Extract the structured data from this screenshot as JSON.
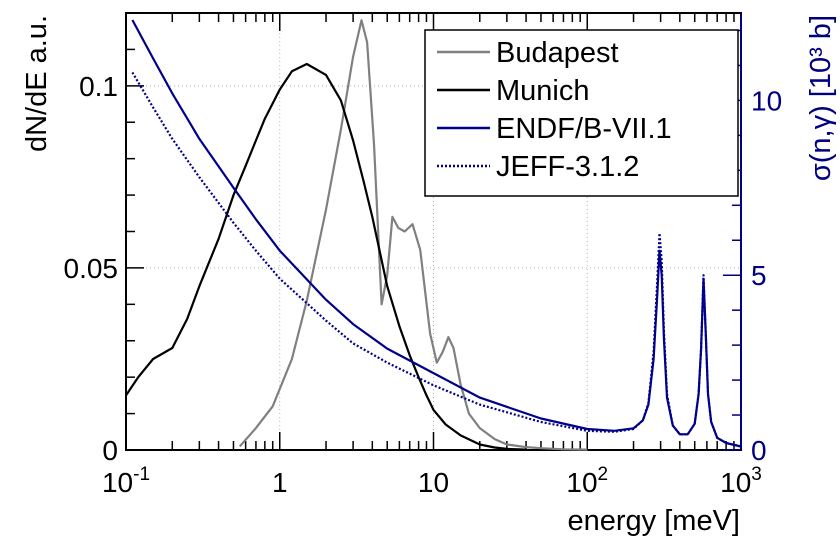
{
  "chart_data": {
    "type": "line",
    "xlabel": "energy [meV]",
    "ylabel_left": "dN/dE a.u.",
    "ylabel_right": "σ(n,γ) [10³ b]",
    "x_scale": "log",
    "xlim": [
      0.1,
      1000
    ],
    "ylim_left": [
      0,
      0.12
    ],
    "ylim_right": [
      0,
      12.5
    ],
    "x_tick_labels": [
      {
        "value": 0.1,
        "base": "10",
        "exp": "-1"
      },
      {
        "value": 1,
        "base": "1",
        "exp": ""
      },
      {
        "value": 10,
        "base": "10",
        "exp": ""
      },
      {
        "value": 100,
        "base": "10",
        "exp": "2"
      },
      {
        "value": 1000,
        "base": "10",
        "exp": "3"
      }
    ],
    "y_left_ticks": [
      {
        "value": 0,
        "label": "0"
      },
      {
        "value": 0.05,
        "label": "0.05"
      },
      {
        "value": 0.1,
        "label": "0.1"
      }
    ],
    "y_right_ticks": [
      {
        "value": 0,
        "label": "0"
      },
      {
        "value": 5,
        "label": "5"
      },
      {
        "value": 10,
        "label": "10"
      }
    ],
    "grid": true,
    "legend_position": "top-right",
    "series": [
      {
        "name": "Budapest",
        "axis": "left",
        "color": "#808080",
        "style": "solid",
        "x": [
          0.55,
          0.7,
          0.9,
          1.2,
          1.5,
          2.0,
          2.5,
          3.0,
          3.4,
          3.7,
          4.1,
          4.6,
          5.0,
          5.4,
          5.9,
          6.5,
          7.3,
          8.2,
          9.5,
          10.5,
          11.5,
          12.5,
          13.5,
          15.0,
          17.0,
          20.0,
          25.0,
          30.0,
          40.0,
          50.0,
          70.0,
          100.0
        ],
        "values": [
          0.001,
          0.006,
          0.012,
          0.025,
          0.041,
          0.066,
          0.088,
          0.108,
          0.118,
          0.112,
          0.084,
          0.04,
          0.048,
          0.064,
          0.061,
          0.06,
          0.062,
          0.055,
          0.032,
          0.024,
          0.027,
          0.031,
          0.028,
          0.018,
          0.01,
          0.006,
          0.003,
          0.0015,
          0.0008,
          0.0005,
          0.0002,
          0.0001
        ]
      },
      {
        "name": "Munich",
        "axis": "left",
        "color": "#000000",
        "style": "solid",
        "x": [
          0.1,
          0.12,
          0.15,
          0.2,
          0.25,
          0.3,
          0.4,
          0.5,
          0.6,
          0.7,
          0.8,
          1.0,
          1.2,
          1.5,
          2.0,
          2.5,
          3.0,
          3.5,
          4.0,
          5.0,
          6.0,
          7.0,
          8.0,
          9.0,
          10.0,
          12.0,
          15.0,
          20.0,
          25.0,
          30.0,
          40.0
        ],
        "values": [
          0.015,
          0.02,
          0.025,
          0.028,
          0.036,
          0.045,
          0.058,
          0.07,
          0.078,
          0.085,
          0.091,
          0.099,
          0.104,
          0.106,
          0.103,
          0.096,
          0.085,
          0.074,
          0.064,
          0.045,
          0.034,
          0.026,
          0.02,
          0.015,
          0.011,
          0.007,
          0.004,
          0.0015,
          0.0007,
          0.0003,
          0.0001
        ]
      },
      {
        "name": "ENDF/B-VII.1",
        "axis": "right",
        "color": "#00008b",
        "style": "solid",
        "x": [
          0.11,
          0.15,
          0.2,
          0.3,
          0.5,
          0.7,
          1,
          2,
          3,
          5,
          10,
          20,
          50,
          100,
          150,
          200,
          230,
          250,
          270,
          285,
          295,
          305,
          315,
          330,
          360,
          400,
          450,
          500,
          530,
          550,
          570,
          590,
          610,
          640,
          700,
          800,
          1000
        ],
        "values": [
          12.3,
          11.2,
          10.2,
          8.9,
          7.5,
          6.6,
          5.7,
          4.3,
          3.6,
          2.9,
          2.2,
          1.5,
          0.9,
          0.6,
          0.55,
          0.62,
          0.85,
          1.3,
          2.6,
          4.4,
          5.7,
          5.0,
          3.2,
          1.5,
          0.7,
          0.45,
          0.45,
          0.75,
          1.6,
          2.9,
          4.9,
          3.3,
          1.6,
          0.8,
          0.35,
          0.2,
          0.1
        ]
      },
      {
        "name": "JEFF-3.1.2",
        "axis": "right",
        "color": "#00008b",
        "style": "dotted",
        "x": [
          0.11,
          0.15,
          0.2,
          0.3,
          0.5,
          0.7,
          1,
          2,
          3,
          5,
          10,
          20,
          50,
          100,
          150,
          200,
          230,
          250,
          270,
          285,
          295,
          305,
          315,
          330,
          360,
          400,
          450,
          500,
          530,
          550,
          570,
          590,
          610,
          640,
          700,
          800,
          1000
        ],
        "values": [
          10.8,
          9.8,
          8.9,
          7.8,
          6.5,
          5.7,
          4.9,
          3.7,
          3.05,
          2.5,
          1.85,
          1.3,
          0.8,
          0.55,
          0.52,
          0.6,
          0.85,
          1.35,
          2.8,
          4.8,
          6.2,
          5.4,
          3.4,
          1.6,
          0.7,
          0.45,
          0.45,
          0.75,
          1.6,
          2.9,
          5.0,
          3.3,
          1.6,
          0.8,
          0.35,
          0.2,
          0.1
        ]
      }
    ]
  }
}
